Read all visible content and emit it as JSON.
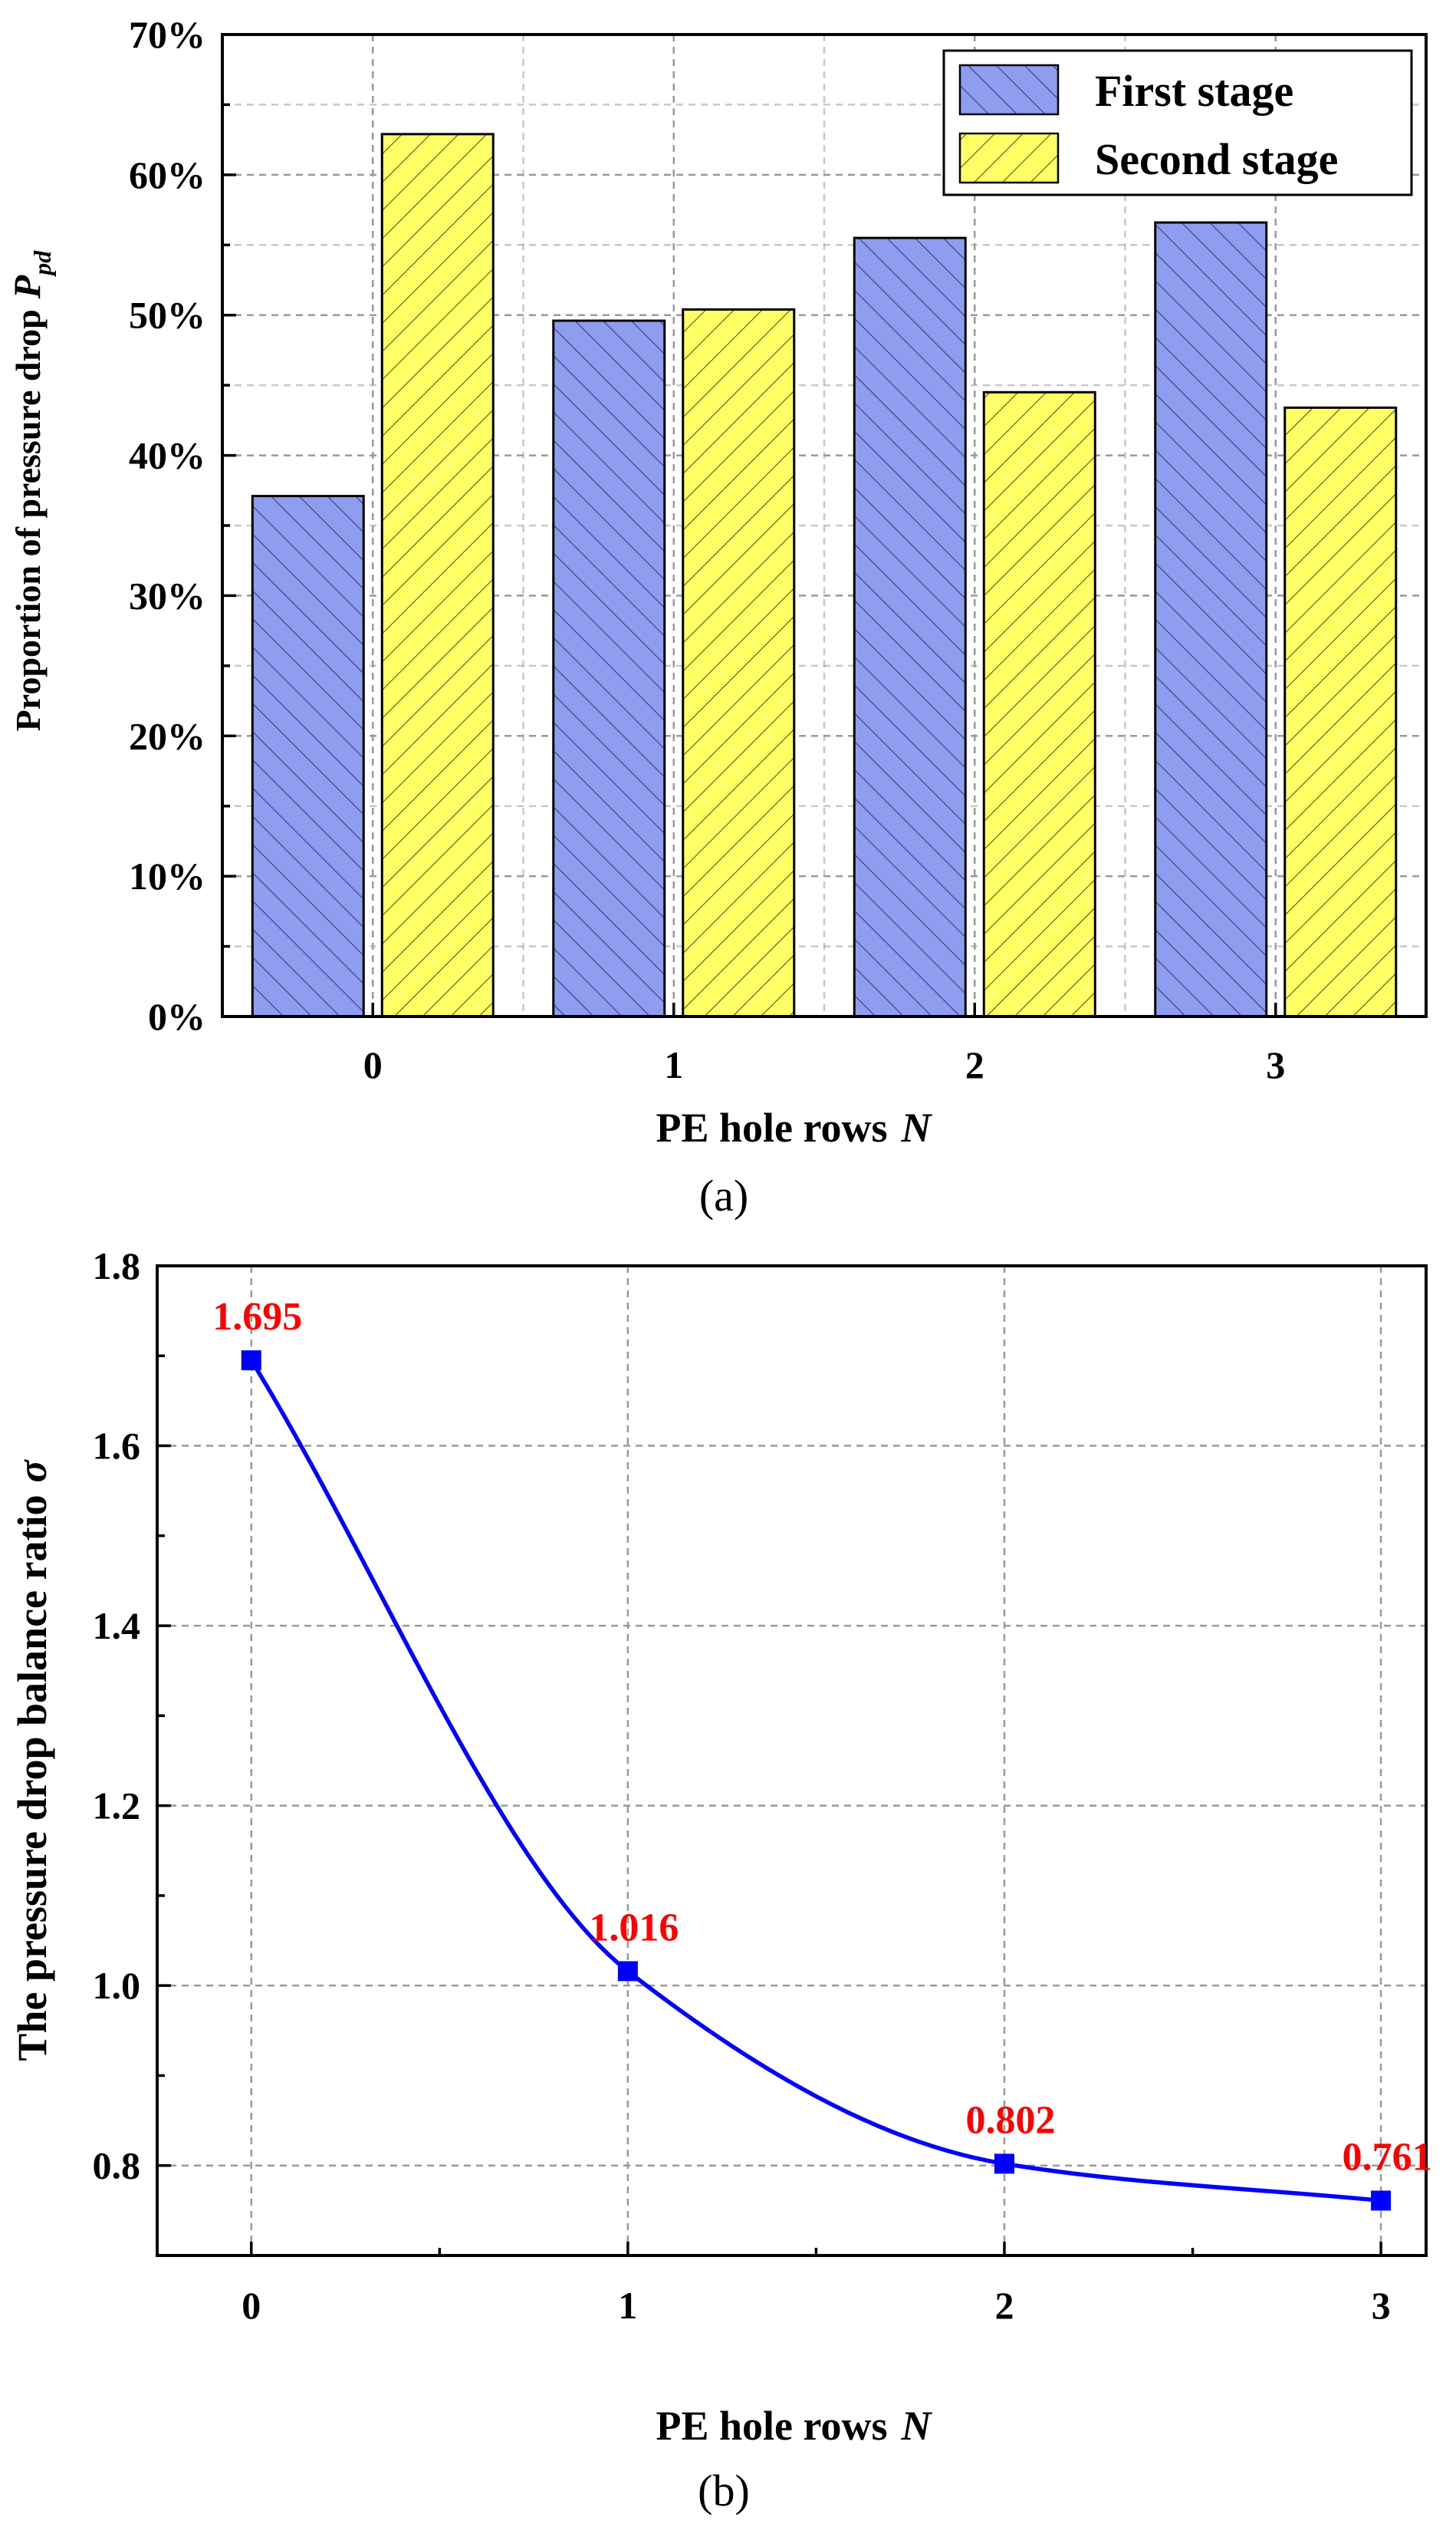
{
  "chart_data": [
    {
      "type": "bar",
      "panel_label": "(a)",
      "categories": [
        "0",
        "1",
        "2",
        "3"
      ],
      "series": [
        {
          "name": "First stage",
          "values": [
            37.1,
            49.6,
            55.5,
            56.6
          ],
          "color": "#8f9df0"
        },
        {
          "name": "Second stage",
          "values": [
            62.9,
            50.4,
            44.5,
            43.4
          ],
          "color": "#ffff66"
        }
      ],
      "xlabel": "PE hole rows",
      "xlabel_var": "N",
      "ylabel": "Proportion of pressure drop",
      "ylabel_var": "P",
      "ylabel_sub": "pd",
      "ylim": [
        0,
        70
      ],
      "yticks": [
        "0%",
        "10%",
        "20%",
        "30%",
        "40%",
        "50%",
        "60%",
        "70%"
      ],
      "grid": true,
      "legend": "top-right"
    },
    {
      "type": "line",
      "panel_label": "(b)",
      "x": [
        0,
        1,
        2,
        3
      ],
      "y": [
        1.695,
        1.016,
        0.802,
        0.761
      ],
      "data_labels": [
        "1.695",
        "1.016",
        "0.802",
        "0.761"
      ],
      "xticks": [
        "0",
        "1",
        "2",
        "3"
      ],
      "xlim": [
        -0.25,
        3.12
      ],
      "ylim": [
        0.7,
        1.8
      ],
      "yticks": [
        "0.8",
        "1.0",
        "1.2",
        "1.4",
        "1.6",
        "1.8"
      ],
      "xlabel": "PE hole rows",
      "xlabel_var": "N",
      "ylabel": "The pressure drop balance ratio",
      "ylabel_var": "σ",
      "line_color": "#0000ff",
      "label_color": "#ff0000",
      "grid": true
    }
  ]
}
